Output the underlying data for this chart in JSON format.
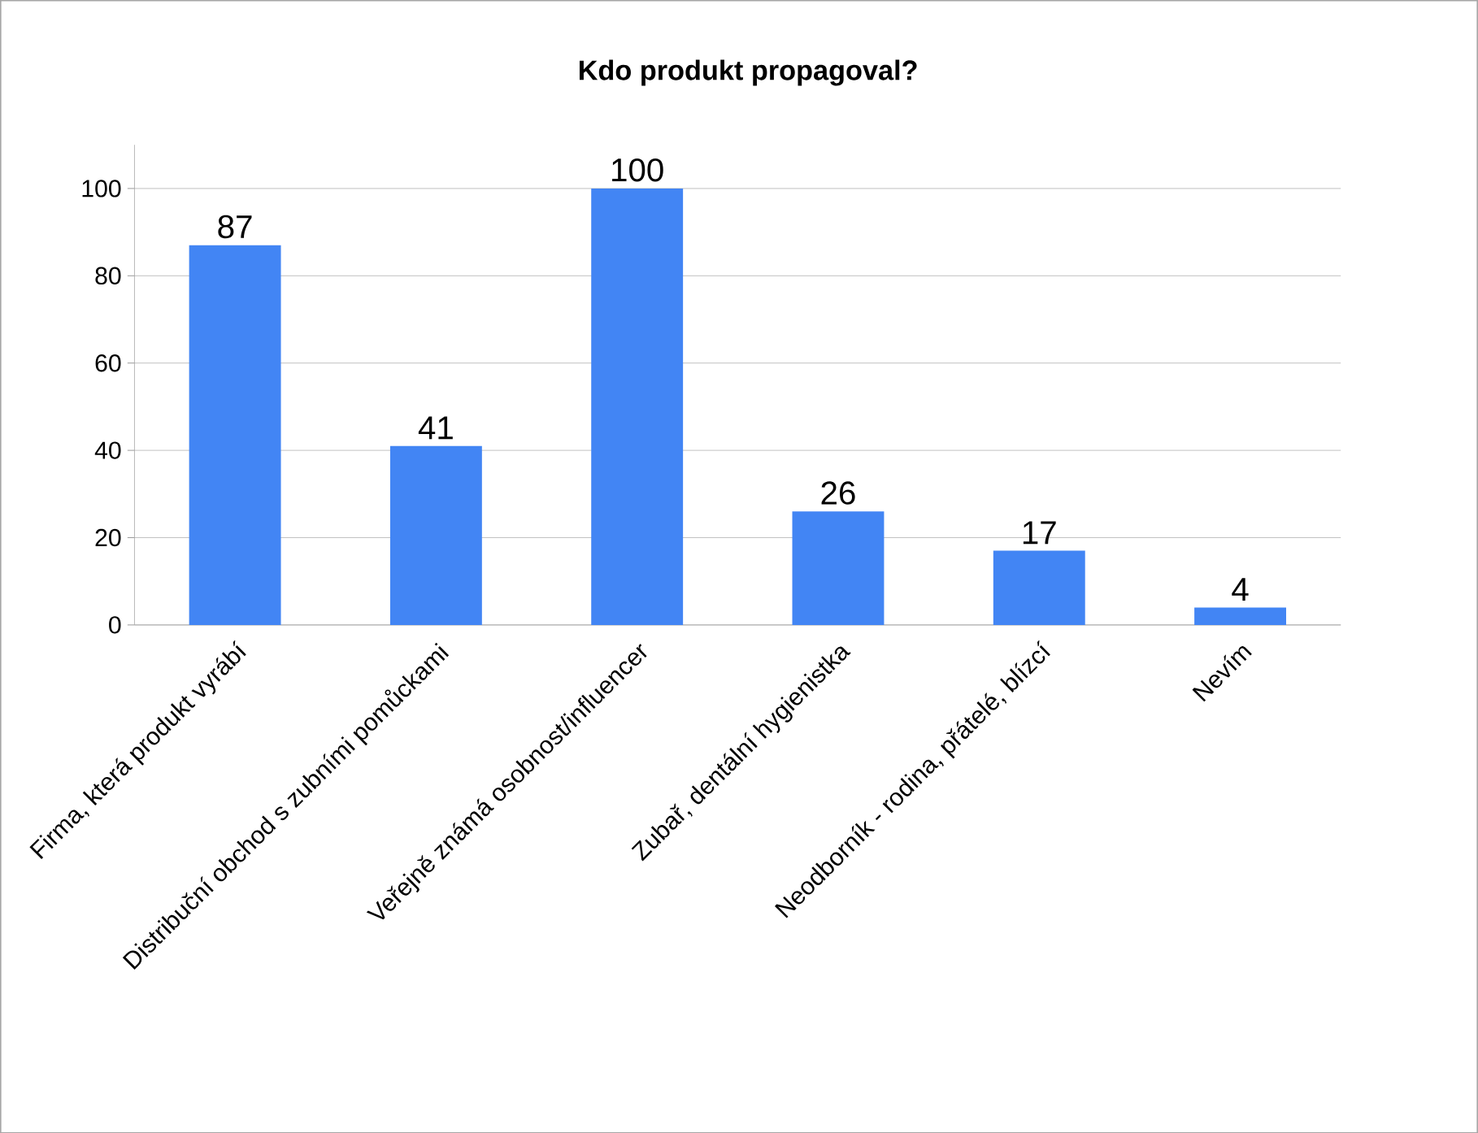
{
  "chart_data": {
    "type": "bar",
    "title": "Kdo produkt propagoval?",
    "categories": [
      "Firma, která produkt vyrábí",
      "Distribuční obchod s zubními pomůckami",
      "Veřejně známá osobnost/influencer",
      "Zubař, dentální hygienistka",
      "Neodborník - rodina, přátelé, blízcí",
      "Nevím"
    ],
    "values": [
      87,
      41,
      100,
      26,
      17,
      4
    ],
    "color": "#4285f4",
    "ylim": [
      0,
      110
    ],
    "yticks": [
      0,
      20,
      40,
      60,
      80,
      100
    ],
    "grid": "y",
    "data_labels": true
  }
}
